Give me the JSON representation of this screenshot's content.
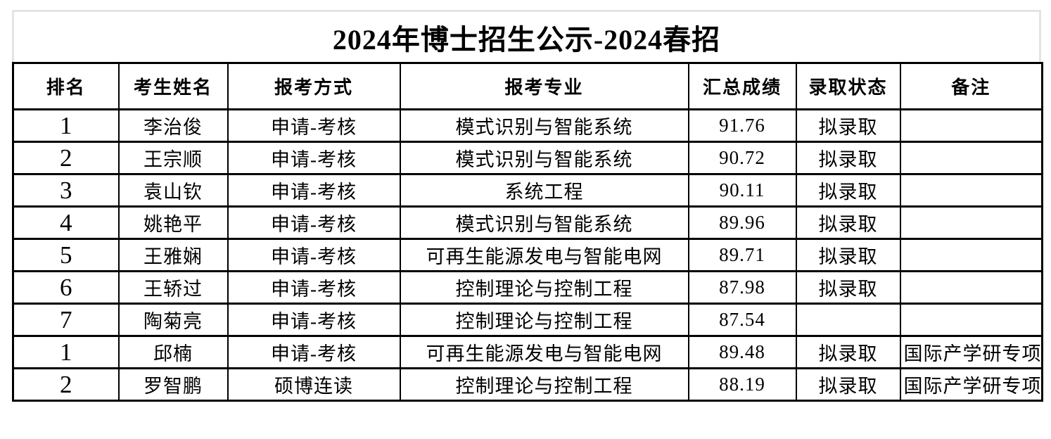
{
  "page": {
    "title": "2024年博士招生公示-2024春招"
  },
  "colors": {
    "background": "#ffffff",
    "text": "#000000",
    "table_border": "#000000",
    "title_border": "#e4e4e4"
  },
  "table": {
    "columns": [
      "排名",
      "考生姓名",
      "报考方式",
      "报考专业",
      "汇总成绩",
      "录取状态",
      "备注"
    ],
    "rows": [
      {
        "rank": "1",
        "name": "李治俊",
        "method": "申请-考核",
        "major": "模式识别与智能系统",
        "score": "91.76",
        "status": "拟录取",
        "remark": ""
      },
      {
        "rank": "2",
        "name": "王宗顺",
        "method": "申请-考核",
        "major": "模式识别与智能系统",
        "score": "90.72",
        "status": "拟录取",
        "remark": ""
      },
      {
        "rank": "3",
        "name": "袁山钦",
        "method": "申请-考核",
        "major": "系统工程",
        "score": "90.11",
        "status": "拟录取",
        "remark": ""
      },
      {
        "rank": "4",
        "name": "姚艳平",
        "method": "申请-考核",
        "major": "模式识别与智能系统",
        "score": "89.96",
        "status": "拟录取",
        "remark": ""
      },
      {
        "rank": "5",
        "name": "王雅娴",
        "method": "申请-考核",
        "major": "可再生能源发电与智能电网",
        "score": "89.71",
        "status": "拟录取",
        "remark": ""
      },
      {
        "rank": "6",
        "name": "王轿过",
        "method": "申请-考核",
        "major": "控制理论与控制工程",
        "score": "87.98",
        "status": "拟录取",
        "remark": ""
      },
      {
        "rank": "7",
        "name": "陶菊亮",
        "method": "申请-考核",
        "major": "控制理论与控制工程",
        "score": "87.54",
        "status": "",
        "remark": ""
      },
      {
        "rank": "1",
        "name": "邱楠",
        "method": "申请-考核",
        "major": "可再生能源发电与智能电网",
        "score": "89.48",
        "status": "拟录取",
        "remark": "国际产学研专项"
      },
      {
        "rank": "2",
        "name": "罗智鹏",
        "method": "硕博连读",
        "major": "控制理论与控制工程",
        "score": "88.19",
        "status": "拟录取",
        "remark": "国际产学研专项"
      }
    ]
  }
}
